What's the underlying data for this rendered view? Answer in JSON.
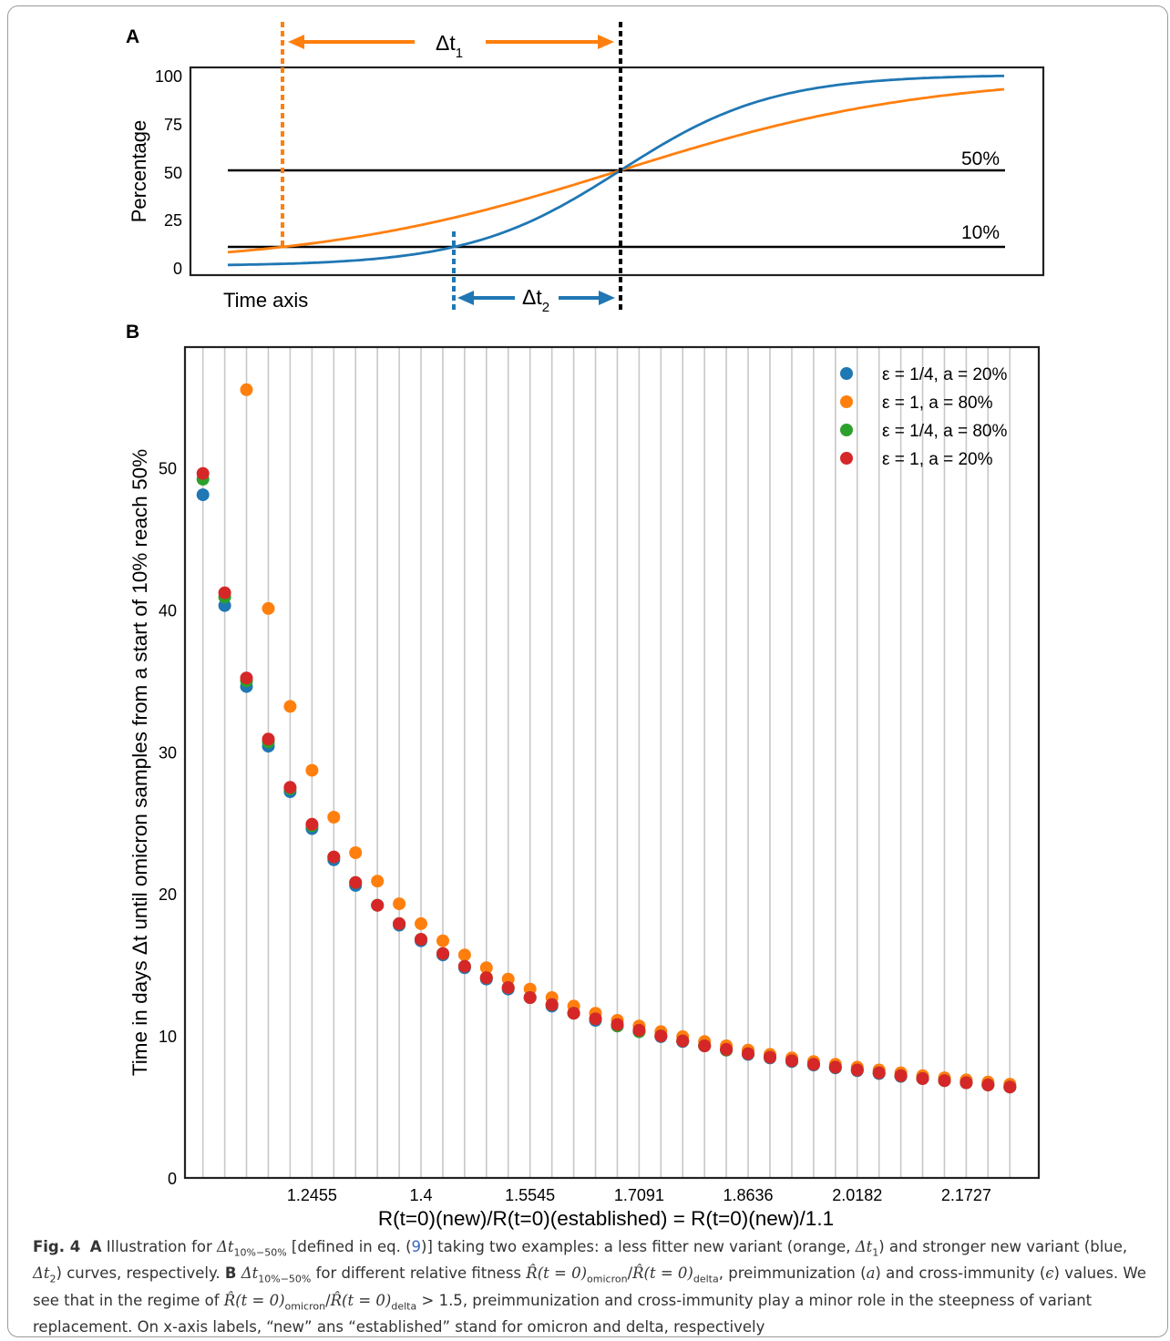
{
  "panel_a": {
    "label": "A",
    "ylabel": "Percentage",
    "yticks": [
      "100",
      "75",
      "50",
      "25",
      "0"
    ],
    "xlabel": "Time axis",
    "line_50_label": "50%",
    "line_10_label": "10%",
    "dt1_label": "Δt",
    "dt1_sub": "1",
    "dt2_label": "Δt",
    "dt2_sub": "2",
    "colors": {
      "orange": "#ff7f0e",
      "blue": "#1f77b4",
      "black": "#000000"
    }
  },
  "panel_b": {
    "label": "B"
  },
  "chart_data": {
    "type": "scatter",
    "title": "",
    "xlabel": "R(t=0)(new)/R(t=0)(established) = R(t=0)(new)/1.1",
    "ylabel": "Time in days Δt until omicron samples from a start of 10% reach 50%",
    "xlim": [
      1.0655,
      2.2755
    ],
    "ylim": [
      0,
      58.5
    ],
    "x_tick_labels": [
      "1.2455",
      "1.4",
      "1.5545",
      "1.7091",
      "1.8636",
      "2.0182",
      "2.1727"
    ],
    "y_tick_labels": [
      "0",
      "10",
      "20",
      "30",
      "40",
      "50"
    ],
    "grid": "vertical",
    "legend_position": "top-right",
    "x": [
      1.0909,
      1.1218,
      1.1527,
      1.1836,
      1.2145,
      1.2455,
      1.2764,
      1.3073,
      1.3382,
      1.3691,
      1.4,
      1.4309,
      1.4618,
      1.4927,
      1.5236,
      1.5545,
      1.5855,
      1.6164,
      1.6473,
      1.6782,
      1.7091,
      1.74,
      1.7709,
      1.8018,
      1.8327,
      1.8636,
      1.8945,
      1.9255,
      1.9564,
      1.9873,
      2.0182,
      2.0491,
      2.08,
      2.1109,
      2.1418,
      2.1727,
      2.2036,
      2.2345
    ],
    "series": [
      {
        "name": "ε = 1/4, a = 20%",
        "color": "#1f77b4",
        "values": [
          48.1,
          40.3,
          34.6,
          30.4,
          27.2,
          24.6,
          22.4,
          20.6,
          19.2,
          17.8,
          16.7,
          15.7,
          14.8,
          14.0,
          13.3,
          12.7,
          12.1,
          11.6,
          11.1,
          10.7,
          10.3,
          9.95,
          9.6,
          9.3,
          9.0,
          8.7,
          8.45,
          8.2,
          7.95,
          7.75,
          7.55,
          7.35,
          7.15,
          7.0,
          6.85,
          6.7,
          6.55,
          6.4
        ]
      },
      {
        "name": "ε = 1, a = 80%",
        "color": "#ff7f0e",
        "values": [
          null,
          null,
          55.5,
          40.1,
          33.2,
          28.7,
          25.4,
          22.9,
          20.9,
          19.3,
          17.9,
          16.7,
          15.7,
          14.8,
          14.0,
          13.3,
          12.7,
          12.1,
          11.6,
          11.1,
          10.7,
          10.3,
          9.95,
          9.6,
          9.3,
          9.0,
          8.7,
          8.45,
          8.2,
          8.0,
          7.8,
          7.6,
          7.4,
          7.2,
          7.05,
          6.9,
          6.75,
          6.6
        ]
      },
      {
        "name": "ε = 1/4, a = 80%",
        "color": "#2ca02c",
        "values": [
          49.2,
          40.9,
          35.0,
          30.7,
          27.4,
          24.8,
          22.6,
          20.8,
          19.2,
          17.9,
          16.8,
          15.8,
          14.9,
          14.1,
          13.4,
          12.7,
          12.2,
          11.6,
          11.2,
          10.7,
          10.3,
          10.0,
          9.65,
          9.3,
          9.0,
          8.75,
          8.5,
          8.25,
          8.0,
          7.8,
          7.6,
          7.4,
          7.2,
          7.0,
          6.85,
          6.7,
          6.55,
          6.4
        ]
      },
      {
        "name": "ε = 1, a = 20%",
        "color": "#d62728",
        "values": [
          49.6,
          41.2,
          35.2,
          30.9,
          27.5,
          24.9,
          22.6,
          20.8,
          19.2,
          17.9,
          16.8,
          15.8,
          14.9,
          14.1,
          13.4,
          12.7,
          12.2,
          11.6,
          11.2,
          10.8,
          10.4,
          10.0,
          9.65,
          9.3,
          9.05,
          8.75,
          8.5,
          8.25,
          8.0,
          7.8,
          7.6,
          7.4,
          7.2,
          7.0,
          6.85,
          6.7,
          6.55,
          6.4
        ]
      }
    ]
  },
  "caption": {
    "fig_label": "Fig. 4",
    "panel_a": "A",
    "seg1": " Illustration for ",
    "dt_symbol": "Δt",
    "dt_sub": "10%−50%",
    "seg2": " [defined in eq. (",
    "eq_ref": "9",
    "seg3": ")] taking two examples: a less fitter new variant (orange, ",
    "dt1": "Δt",
    "dt1_sub": "1",
    "seg4": ") and stronger new variant (blue, ",
    "dt2": "Δt",
    "dt2_sub": "2",
    "seg5": ") curves, respectively. ",
    "panel_b": "B",
    "seg6": " for different relative fitness ",
    "rhat": "R̂(t = 0)",
    "omicron": "omicron",
    "slash": "/",
    "delta": "delta",
    "seg7": ", preimmunization (",
    "a_sym": "a",
    "seg8": ") and cross-immunity (",
    "eps_sym": "ϵ",
    "seg9": ") values. We see that in the regime of ",
    "gt": " > 1.5",
    "seg10": ", preimmunization and cross-immunity play a minor role in the steepness of variant replacement. On x-axis labels, “new” ans “established” stand for omicron and delta, respectively"
  }
}
